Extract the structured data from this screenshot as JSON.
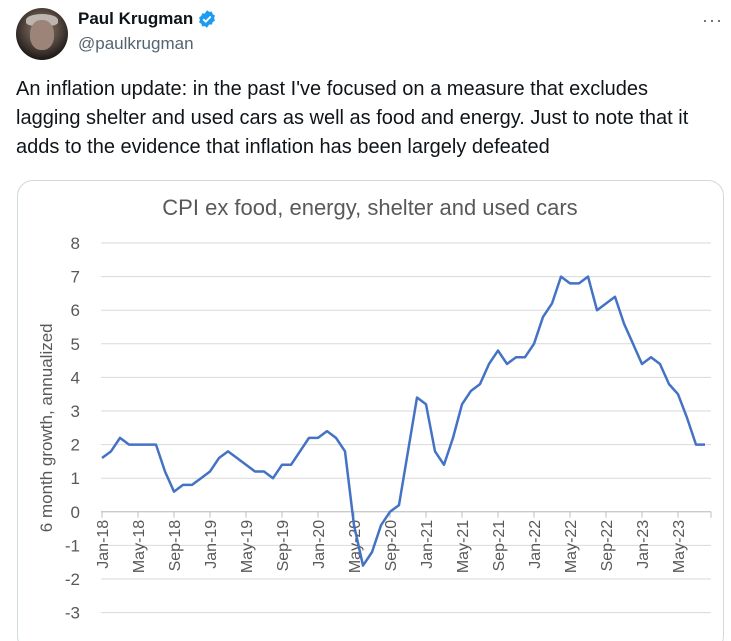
{
  "author": {
    "name": "Paul Krugman",
    "handle": "@paulkrugman",
    "verified": true
  },
  "more_icon": "ellipsis-icon",
  "tweet": {
    "text": "An inflation update: in the past I've focused on a measure that excludes lagging shelter and used cars as well as food and energy. Just to note that it adds to the evidence that inflation has been largely defeated"
  },
  "colors": {
    "line": "#4472c4",
    "verified": "#1d9bf0",
    "grid": "#d9d9d9",
    "axis_text": "#595959"
  },
  "chart_data": {
    "type": "line",
    "title": "CPI ex food, energy, shelter and used cars",
    "xlabel": "",
    "ylabel": "6 month growth, annualized",
    "ylim": [
      -3,
      8
    ],
    "yticks": [
      "8",
      "7",
      "6",
      "5",
      "4",
      "3",
      "2",
      "1",
      "0",
      "-1",
      "-2",
      "-3"
    ],
    "grid": true,
    "x_tick_labels": [
      "Jan-18",
      "May-18",
      "Sep-18",
      "Jan-19",
      "May-19",
      "Sep-19",
      "Jan-20",
      "May-20",
      "Sep-20",
      "Jan-21",
      "May-21",
      "Sep-21",
      "Jan-22",
      "May-22",
      "Sep-22",
      "Jan-23",
      "May-23"
    ],
    "x_start": "Jan-18",
    "x_end": "Aug-23",
    "frequency": "monthly",
    "series": [
      {
        "name": "CPI ex food, energy, shelter and used cars",
        "values": [
          1.6,
          1.8,
          2.2,
          2.0,
          2.0,
          2.0,
          2.0,
          1.2,
          0.6,
          0.8,
          0.8,
          1.0,
          1.2,
          1.6,
          1.8,
          1.6,
          1.4,
          1.2,
          1.2,
          1.0,
          1.4,
          1.4,
          1.8,
          2.2,
          2.2,
          2.4,
          2.2,
          1.8,
          -0.4,
          -1.6,
          -1.2,
          -0.4,
          0.0,
          0.2,
          1.8,
          3.4,
          3.2,
          1.8,
          1.4,
          2.2,
          3.2,
          3.6,
          3.8,
          4.4,
          4.8,
          4.4,
          4.6,
          4.6,
          5.0,
          5.8,
          6.2,
          7.0,
          6.8,
          6.8,
          7.0,
          6.0,
          6.2,
          6.4,
          5.6,
          5.0,
          4.4,
          4.6,
          4.4,
          3.8,
          3.5,
          2.8,
          2.0,
          2.0
        ]
      }
    ]
  }
}
